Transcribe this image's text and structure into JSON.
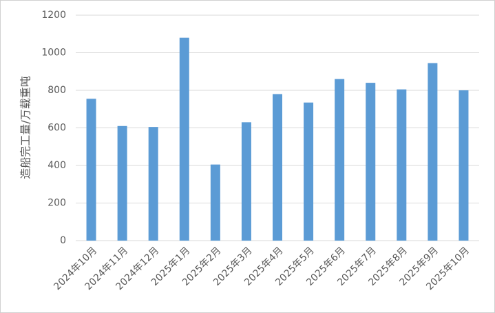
{
  "chart_data": {
    "type": "bar",
    "y_label": "造船完工量/万载重吨",
    "categories": [
      "2024年10月",
      "2024年11月",
      "2024年12月",
      "2025年1月",
      "2025年2月",
      "2025年3月",
      "2025年4月",
      "2025年5月",
      "2025年6月",
      "2025年7月",
      "2025年8月",
      "2025年9月",
      "2025年10月"
    ],
    "values": [
      755,
      610,
      605,
      1080,
      405,
      630,
      780,
      735,
      860,
      840,
      805,
      945,
      800
    ],
    "color": "#5b9bd5",
    "ylim": [
      0,
      1200
    ],
    "yticks": [
      0,
      200,
      400,
      600,
      800,
      1000,
      1200
    ],
    "grid": true
  }
}
